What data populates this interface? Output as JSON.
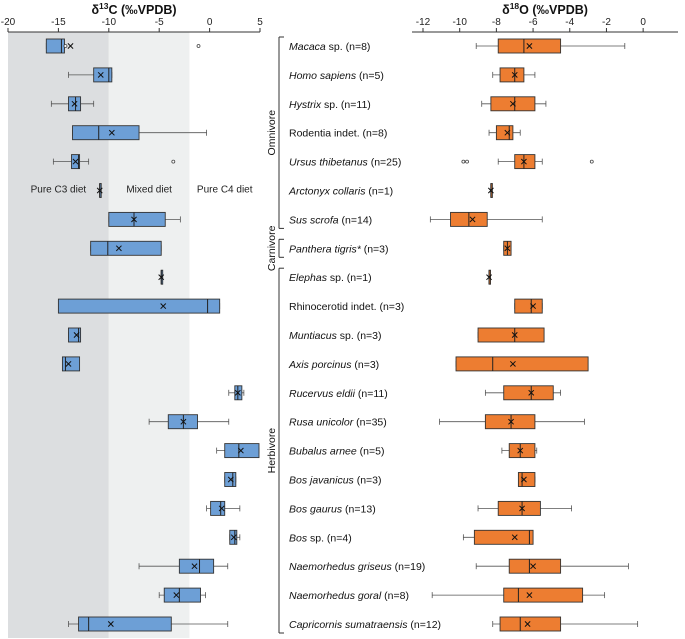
{
  "chart_data": [
    {
      "type": "boxplot",
      "title_prefix": "δ",
      "title_sup": "13",
      "title_suffix": "C (‰VPDB)",
      "xlim": [
        -20,
        5
      ],
      "ticks": [
        -20,
        -15,
        -10,
        -5,
        0,
        5
      ],
      "zones": [
        {
          "label": "Pure C3 diet",
          "from": -20,
          "to": -10,
          "color": "#dcdee0"
        },
        {
          "label": "Mixed diet",
          "from": -10,
          "to": -2,
          "color": "#eef0f0"
        },
        {
          "label": "Pure C4 diet",
          "from": -2,
          "to": 5,
          "color": "#ffffff"
        }
      ],
      "box_color": "#6d9fd6",
      "rows": [
        {
          "wl": -16.2,
          "q1": -16.2,
          "med": -14.7,
          "q3": -14.4,
          "wh": -14.4,
          "mean": -13.8,
          "outliers": [
            -14.3,
            -1.1
          ]
        },
        {
          "wl": -14.0,
          "q1": -11.5,
          "med": -10.0,
          "q3": -9.7,
          "wh": -9.7,
          "mean": -10.8,
          "outliers": []
        },
        {
          "wl": -15.7,
          "q1": -14.0,
          "med": -13.3,
          "q3": -12.8,
          "wh": -11.5,
          "mean": -13.4,
          "outliers": []
        },
        {
          "wl": -13.6,
          "q1": -13.6,
          "med": -11.0,
          "q3": -7.0,
          "wh": -0.3,
          "mean": -9.7,
          "outliers": []
        },
        {
          "wl": -15.5,
          "q1": -13.7,
          "med": -13.0,
          "q3": -12.9,
          "wh": -12.0,
          "mean": -13.3,
          "outliers": [
            -3.6
          ]
        },
        {
          "wl": -10.9,
          "q1": -10.9,
          "med": -10.9,
          "q3": -10.9,
          "wh": -10.9,
          "mean": -10.9,
          "outliers": []
        },
        {
          "wl": -10.0,
          "q1": -10.0,
          "med": -7.5,
          "q3": -4.4,
          "wh": -2.9,
          "mean": -7.5,
          "outliers": []
        },
        {
          "wl": -11.8,
          "q1": -11.8,
          "med": -10.1,
          "q3": -4.8,
          "wh": -4.8,
          "mean": -9.0,
          "outliers": []
        },
        {
          "wl": -4.8,
          "q1": -4.8,
          "med": -4.8,
          "q3": -4.8,
          "wh": -4.8,
          "mean": -4.8,
          "outliers": []
        },
        {
          "wl": -15.0,
          "q1": -15.0,
          "med": -0.2,
          "q3": 1.0,
          "wh": 1.0,
          "mean": -4.6,
          "outliers": []
        },
        {
          "wl": -14.0,
          "q1": -14.0,
          "med": -13.0,
          "q3": -12.8,
          "wh": -12.8,
          "mean": -13.2,
          "outliers": []
        },
        {
          "wl": -14.6,
          "q1": -14.6,
          "med": -14.3,
          "q3": -12.9,
          "wh": -12.9,
          "mean": -14.0,
          "outliers": []
        },
        {
          "wl": 1.9,
          "q1": 2.5,
          "med": 2.8,
          "q3": 3.2,
          "wh": 3.4,
          "mean": 2.8,
          "outliers": []
        },
        {
          "wl": -6.0,
          "q1": -4.1,
          "med": -2.6,
          "q3": -1.2,
          "wh": 1.9,
          "mean": -2.6,
          "outliers": []
        },
        {
          "wl": 0.7,
          "q1": 1.5,
          "med": 2.9,
          "q3": 4.9,
          "wh": 4.9,
          "mean": 3.1,
          "outliers": []
        },
        {
          "wl": 1.5,
          "q1": 1.5,
          "med": 2.3,
          "q3": 2.6,
          "wh": 2.6,
          "mean": 2.1,
          "outliers": []
        },
        {
          "wl": -0.3,
          "q1": 0.1,
          "med": 1.1,
          "q3": 1.5,
          "wh": 3.0,
          "mean": 1.2,
          "outliers": []
        },
        {
          "wl": 2.0,
          "q1": 2.0,
          "med": 2.5,
          "q3": 2.7,
          "wh": 3.0,
          "mean": 2.4,
          "outliers": []
        },
        {
          "wl": -7.0,
          "q1": -3.0,
          "med": -1.0,
          "q3": 0.4,
          "wh": 1.8,
          "mean": -1.5,
          "outliers": []
        },
        {
          "wl": -5.0,
          "q1": -4.5,
          "med": -3.0,
          "q3": -0.9,
          "wh": -0.4,
          "mean": -3.3,
          "outliers": []
        },
        {
          "wl": -14.0,
          "q1": -13.0,
          "med": -12.0,
          "q3": -3.8,
          "wh": 1.8,
          "mean": -9.8,
          "outliers": []
        }
      ]
    },
    {
      "type": "boxplot",
      "title_prefix": "δ",
      "title_sup": "18",
      "title_suffix": "O (‰VPDB)",
      "xlim": [
        -12.6,
        1.9
      ],
      "ticks": [
        -12,
        -10,
        -8,
        -6,
        -4,
        -2,
        0
      ],
      "box_color": "#ed7d31",
      "rows": [
        {
          "wl": -9.1,
          "q1": -7.9,
          "med": -6.5,
          "q3": -4.5,
          "wh": -1.0,
          "mean": -6.2,
          "outliers": []
        },
        {
          "wl": -8.2,
          "q1": -7.8,
          "med": -7.0,
          "q3": -6.5,
          "wh": -5.9,
          "mean": -7.0,
          "outliers": []
        },
        {
          "wl": -8.8,
          "q1": -8.3,
          "med": -7.0,
          "q3": -5.9,
          "wh": -5.3,
          "mean": -7.1,
          "outliers": []
        },
        {
          "wl": -8.4,
          "q1": -8.0,
          "med": -7.3,
          "q3": -7.1,
          "wh": -6.7,
          "mean": -7.4,
          "outliers": []
        },
        {
          "wl": -7.9,
          "q1": -7.0,
          "med": -6.5,
          "q3": -5.9,
          "wh": -5.5,
          "mean": -6.5,
          "outliers": [
            -9.8,
            -9.6,
            -2.8
          ]
        },
        {
          "wl": -8.3,
          "q1": -8.3,
          "med": -8.3,
          "q3": -8.3,
          "wh": -8.3,
          "mean": -8.3,
          "outliers": []
        },
        {
          "wl": -11.6,
          "q1": -10.5,
          "med": -9.5,
          "q3": -8.5,
          "wh": -5.5,
          "mean": -9.3,
          "outliers": []
        },
        {
          "wl": -7.6,
          "q1": -7.6,
          "med": -7.4,
          "q3": -7.2,
          "wh": -7.2,
          "mean": -7.4,
          "outliers": []
        },
        {
          "wl": -8.4,
          "q1": -8.4,
          "med": -8.4,
          "q3": -8.4,
          "wh": -8.4,
          "mean": -8.4,
          "outliers": []
        },
        {
          "wl": -7.0,
          "q1": -7.0,
          "med": -6.1,
          "q3": -5.5,
          "wh": -5.5,
          "mean": -6.0,
          "outliers": []
        },
        {
          "wl": -9.0,
          "q1": -9.0,
          "med": -7.0,
          "q3": -5.4,
          "wh": -5.4,
          "mean": -7.0,
          "outliers": []
        },
        {
          "wl": -10.2,
          "q1": -10.2,
          "med": -8.2,
          "q3": -3.0,
          "wh": -3.0,
          "mean": -7.1,
          "outliers": []
        },
        {
          "wl": -8.6,
          "q1": -7.6,
          "med": -6.1,
          "q3": -4.9,
          "wh": -4.5,
          "mean": -6.1,
          "outliers": []
        },
        {
          "wl": -11.1,
          "q1": -8.6,
          "med": -7.2,
          "q3": -5.9,
          "wh": -3.2,
          "mean": -7.2,
          "outliers": []
        },
        {
          "wl": -7.7,
          "q1": -7.3,
          "med": -6.7,
          "q3": -5.9,
          "wh": -5.8,
          "mean": -6.7,
          "outliers": []
        },
        {
          "wl": -6.8,
          "q1": -6.8,
          "med": -6.6,
          "q3": -5.9,
          "wh": -5.9,
          "mean": -6.5,
          "outliers": []
        },
        {
          "wl": -9.0,
          "q1": -7.9,
          "med": -6.6,
          "q3": -5.6,
          "wh": -3.9,
          "mean": -6.6,
          "outliers": []
        },
        {
          "wl": -9.8,
          "q1": -9.2,
          "med": -6.2,
          "q3": -6.0,
          "wh": -6.0,
          "mean": -7.0,
          "outliers": []
        },
        {
          "wl": -9.1,
          "q1": -7.3,
          "med": -6.2,
          "q3": -4.5,
          "wh": -0.8,
          "mean": -6.0,
          "outliers": []
        },
        {
          "wl": -11.5,
          "q1": -7.6,
          "med": -6.8,
          "q3": -3.3,
          "wh": -2.1,
          "mean": -6.2,
          "outliers": []
        },
        {
          "wl": -8.2,
          "q1": -7.8,
          "med": -6.7,
          "q3": -4.5,
          "wh": -0.3,
          "mean": -6.3,
          "outliers": []
        }
      ]
    }
  ],
  "taxa": [
    {
      "name": "Macaca",
      "suffix": " sp. (n=8)",
      "italic": true
    },
    {
      "name": "Homo sapiens",
      "suffix": " (n=5)",
      "italic": true
    },
    {
      "name": "Hystrix",
      "suffix": " sp. (n=11)",
      "italic": true
    },
    {
      "name": "Rodentia indet. (n=8)",
      "suffix": "",
      "italic": false
    },
    {
      "name": "Ursus thibetanus",
      "suffix": " (n=25)",
      "italic": true
    },
    {
      "name": "Arctonyx collaris",
      "suffix": " (n=1)",
      "italic": true
    },
    {
      "name": "Sus scrofa",
      "suffix": " (n=14)",
      "italic": true
    },
    {
      "name": "Panthera tigris*",
      "suffix": " (n=3)",
      "italic": true
    },
    {
      "name": "Elephas",
      "suffix": " sp. (n=1)",
      "italic": true
    },
    {
      "name": "Rhinocerotid indet. (n=3)",
      "suffix": "",
      "italic": false
    },
    {
      "name": "Muntiacus",
      "suffix": " sp. (n=3)",
      "italic": true
    },
    {
      "name": "Axis porcinus",
      "suffix": " (n=3)",
      "italic": true
    },
    {
      "name": "Rucervus eldii",
      "suffix": " (n=11)",
      "italic": true
    },
    {
      "name": "Rusa unicolor",
      "suffix": " (n=35)",
      "italic": true
    },
    {
      "name": "Bubalus arnee",
      "suffix": " (n=5)",
      "italic": true
    },
    {
      "name": "Bos javanicus",
      "suffix": " (n=3)",
      "italic": true
    },
    {
      "name": "Bos gaurus",
      "suffix": " (n=13)",
      "italic": true
    },
    {
      "name": "Bos",
      "suffix": " sp. (n=4)",
      "italic": true
    },
    {
      "name": "Naemorhedus griseus",
      "suffix": " (n=19)",
      "italic": true
    },
    {
      "name": "Naemorhedus goral",
      "suffix": " (n=8)",
      "italic": true
    },
    {
      "name": "Capricornis sumatraensis",
      "suffix": " (n=12)",
      "italic": true
    }
  ],
  "groups": [
    {
      "label": "Omnivore",
      "first": 0,
      "last": 6
    },
    {
      "label": "Carnivore",
      "first": 7,
      "last": 7
    },
    {
      "label": "Herbivore",
      "first": 8,
      "last": 20
    }
  ]
}
